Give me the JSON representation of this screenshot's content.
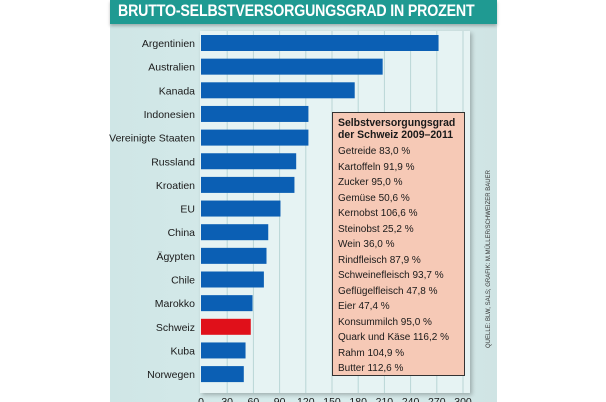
{
  "chart_data": {
    "type": "bar",
    "orientation": "horizontal",
    "title": "BRUTTO-SELBSTVERSORGUNGSGRAD IN PROZENT",
    "xlabel": "",
    "ylabel": "",
    "xlim": [
      0,
      300
    ],
    "xticks": [
      0,
      30,
      60,
      90,
      120,
      150,
      180,
      210,
      240,
      270,
      300
    ],
    "grid": true,
    "categories": [
      "Argentinien",
      "Australien",
      "Kanada",
      "Indonesien",
      "Vereinigte Staaten",
      "Russland",
      "Kroatien",
      "EU",
      "China",
      "Ägypten",
      "Chile",
      "Marokko",
      "Schweiz",
      "Kuba",
      "Norwegen"
    ],
    "values": [
      272,
      208,
      176,
      123,
      123,
      109,
      107,
      91,
      77,
      75,
      72,
      59,
      57,
      51,
      49
    ],
    "highlight": "Schweiz",
    "colors": {
      "bar": "#0b5fb4",
      "highlight": "#e0101a",
      "grid": "#b9d6d6"
    },
    "inset_table": {
      "title_line1": "Selbstversorgungsgrad",
      "title_line2": "der Schweiz 2009–2011",
      "items": [
        {
          "label": "Getreide",
          "value": "83,0 %"
        },
        {
          "label": "Kartoffeln",
          "value": "91,9 %"
        },
        {
          "label": "Zucker",
          "value": "95,0 %"
        },
        {
          "label": "Gemüse",
          "value": "50,6 %"
        },
        {
          "label": "Kernobst",
          "value": "106,6 %"
        },
        {
          "label": "Steinobst",
          "value": "25,2 %"
        },
        {
          "label": "Wein",
          "value": "36,0 %"
        },
        {
          "label": "Rindfleisch",
          "value": "87,9 %"
        },
        {
          "label": "Schweinefleisch",
          "value": "93,7 %"
        },
        {
          "label": "Geflügelfleisch",
          "value": "47,8 %"
        },
        {
          "label": "Eier",
          "value": "47,4 %"
        },
        {
          "label": "Konsummilch",
          "value": "95,0 %"
        },
        {
          "label": "Quark und Käse",
          "value": "116,2 %"
        },
        {
          "label": "Rahm",
          "value": "104,9 %"
        },
        {
          "label": "Butter",
          "value": "112,6 %"
        }
      ]
    },
    "source": "QUELLE: BLW, SALS; GRAFIK: M.MÜLLER/SCHWEIZER BAUER"
  }
}
